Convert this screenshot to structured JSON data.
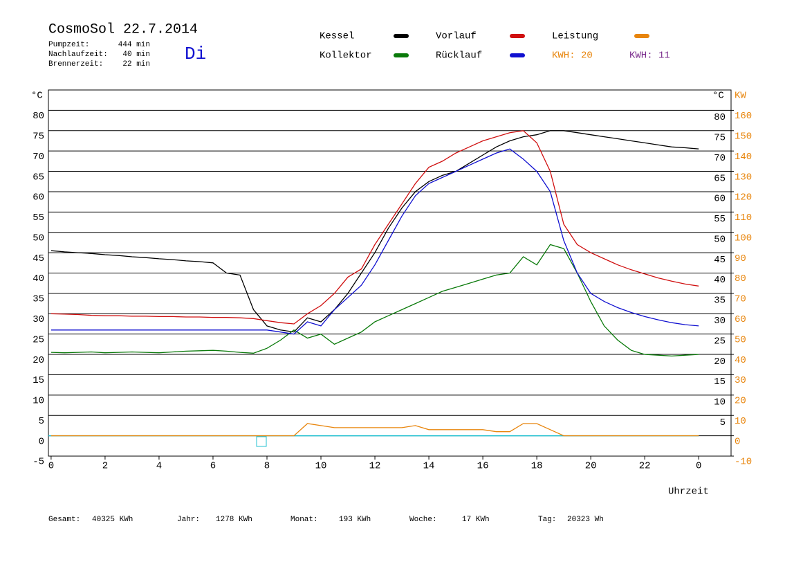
{
  "chart_data": {
    "type": "line",
    "title": "CosmoSol 22.7.2014",
    "weekday": "Di",
    "info": [
      {
        "label": "Pumpzeit:",
        "value": "444 min"
      },
      {
        "label": "Nachlaufzeit:",
        "value": "40 min"
      },
      {
        "label": "Brennerzeit:",
        "value": "22 min"
      }
    ],
    "kwh_labels": [
      {
        "text": "KWH: 20",
        "color": "#e8850c"
      },
      {
        "text": "KWH: 11",
        "color": "#7b2d8e"
      }
    ],
    "y_unit": "°C",
    "y2_unit": "KW",
    "x_label": "Uhrzeit",
    "totals": [
      {
        "label": "Gesamt:",
        "value": "40325 KWh"
      },
      {
        "label": "Jahr:",
        "value": "1278 KWh"
      },
      {
        "label": "Monat:",
        "value": "193 KWh"
      },
      {
        "label": "Woche:",
        "value": "17 KWh"
      },
      {
        "label": "Tag:",
        "value": "20323 Wh"
      }
    ],
    "xlim": [
      -0.1,
      25.2
    ],
    "xticks": [
      0,
      2,
      4,
      6,
      8,
      10,
      12,
      14,
      16,
      18,
      20,
      22,
      {
        "value": 24,
        "label": "0"
      }
    ],
    "ylim": [
      -5,
      85
    ],
    "yticks": [
      -5,
      0,
      5,
      10,
      15,
      20,
      25,
      30,
      35,
      40,
      45,
      50,
      55,
      60,
      65,
      70,
      75,
      80
    ],
    "y2lim": [
      -10,
      170
    ],
    "y2ticks": [
      -10,
      0,
      10,
      20,
      30,
      40,
      50,
      60,
      70,
      80,
      90,
      100,
      110,
      120,
      130,
      140,
      150,
      160
    ],
    "grid": true,
    "x": [
      0,
      0.5,
      1,
      1.5,
      2,
      2.5,
      3,
      3.5,
      4,
      4.5,
      5,
      5.5,
      6,
      6.5,
      7,
      7.5,
      8,
      8.5,
      9,
      9.5,
      10,
      10.5,
      11,
      11.5,
      12,
      12.5,
      13,
      13.5,
      14,
      14.5,
      15,
      15.5,
      16,
      16.5,
      17,
      17.5,
      18,
      18.5,
      19,
      19.5,
      20,
      20.5,
      21,
      21.5,
      22,
      22.5,
      23,
      23.5,
      24
    ],
    "series": [
      {
        "name": "Kessel",
        "color": "#000000",
        "values": [
          45.5,
          45.2,
          45,
          44.8,
          44.5,
          44.3,
          44,
          43.8,
          43.5,
          43.3,
          43,
          42.8,
          42.5,
          40,
          39.5,
          31,
          27,
          26,
          25.5,
          29,
          28,
          31,
          35,
          40,
          45,
          51,
          56,
          60,
          62.5,
          64,
          65,
          67,
          69,
          71,
          72.5,
          73.5,
          74,
          75,
          75,
          74.5,
          74,
          73.5,
          73,
          72.5,
          72,
          71.5,
          71,
          70.8,
          70.5
        ]
      },
      {
        "name": "Kollektor",
        "color": "#0a7a0a",
        "values": [
          20.5,
          20.4,
          20.5,
          20.6,
          20.4,
          20.5,
          20.6,
          20.5,
          20.4,
          20.6,
          20.8,
          20.9,
          21,
          20.8,
          20.5,
          20.3,
          21.5,
          23.5,
          26,
          24,
          25,
          22.5,
          24,
          25.5,
          28,
          29.5,
          31,
          32.5,
          34,
          35.5,
          36.5,
          37.5,
          38.5,
          39.5,
          40,
          44,
          42,
          47,
          46,
          40,
          33,
          27,
          23.5,
          21,
          20,
          19.8,
          19.6,
          19.8,
          20
        ]
      },
      {
        "name": "Vorlauf",
        "color": "#d01010",
        "values": [
          30,
          29.9,
          29.8,
          29.6,
          29.5,
          29.5,
          29.4,
          29.4,
          29.3,
          29.3,
          29.2,
          29.2,
          29.1,
          29.1,
          29,
          28.8,
          28.3,
          27.8,
          27.5,
          30,
          32,
          35,
          39,
          41,
          47,
          52,
          57,
          62,
          66,
          67.5,
          69.5,
          71,
          72.5,
          73.5,
          74.5,
          75,
          72,
          65,
          52,
          47,
          45,
          43.5,
          42,
          40.8,
          39.8,
          38.8,
          38,
          37.3,
          36.8
        ]
      },
      {
        "name": "Rücklauf",
        "color": "#1010d0",
        "values": [
          26,
          26,
          26,
          26,
          26,
          26,
          26,
          26,
          26,
          26,
          26,
          26,
          26,
          26,
          26,
          26,
          26,
          25.5,
          25,
          28,
          27,
          31,
          34,
          37,
          42,
          48,
          54,
          59,
          62,
          63.5,
          65,
          66.5,
          68,
          69.5,
          70.5,
          68,
          65,
          60,
          48,
          40,
          35,
          33,
          31.5,
          30.3,
          29.3,
          28.5,
          27.8,
          27.3,
          27
        ]
      },
      {
        "name": "Leistung",
        "color": "#e8850c",
        "axis": "y2",
        "values": [
          0,
          0,
          0,
          0,
          0,
          0,
          0,
          0,
          0,
          0,
          0,
          0,
          0,
          0,
          0,
          0,
          0,
          0,
          0,
          6,
          5,
          4,
          4,
          4,
          4,
          4,
          4,
          5,
          3,
          3,
          3,
          3,
          3,
          2,
          2,
          6,
          6,
          3,
          0,
          0,
          0,
          0,
          0,
          0,
          0,
          0,
          0,
          0,
          0
        ]
      }
    ]
  }
}
